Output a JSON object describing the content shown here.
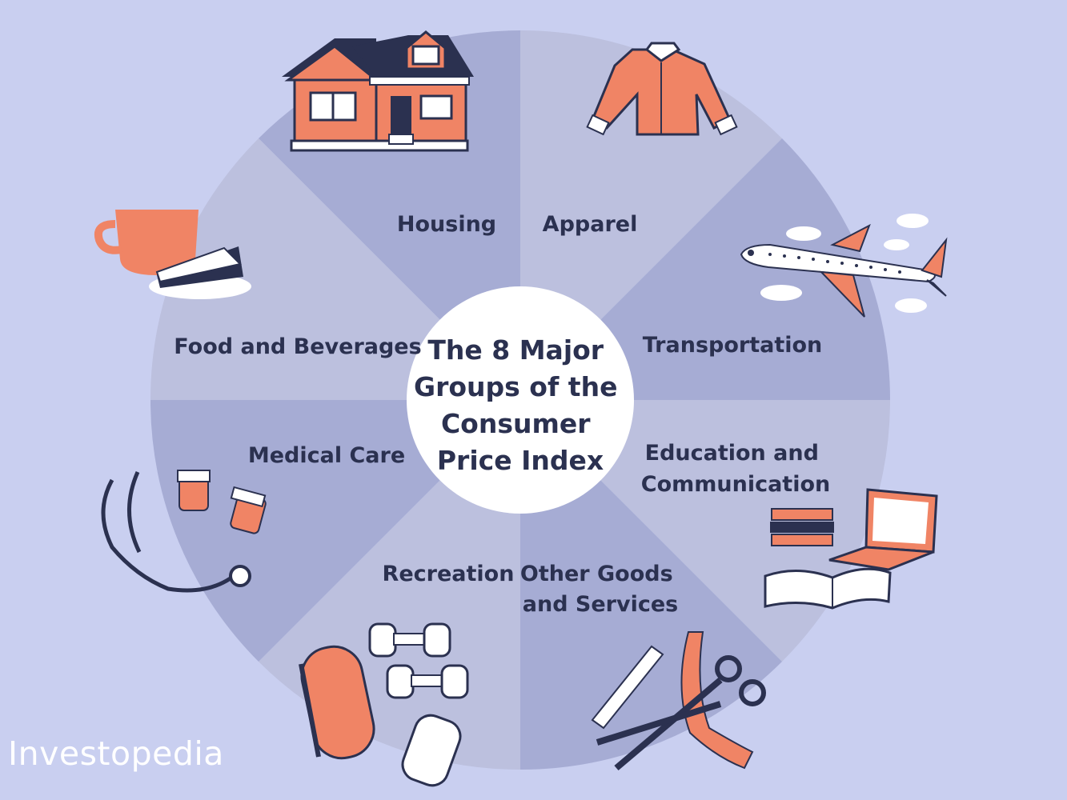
{
  "center": {
    "title_lines": [
      "The 8 Major",
      "Groups of the",
      "Consumer",
      "Price Index"
    ]
  },
  "segments": [
    {
      "name": "housing",
      "lines": [
        "Housing"
      ],
      "icon": "house-icon"
    },
    {
      "name": "apparel",
      "lines": [
        "Apparel"
      ],
      "icon": "shirt-icon"
    },
    {
      "name": "transportation",
      "lines": [
        "Transportation"
      ],
      "icon": "airplane-icon"
    },
    {
      "name": "education-and-communication",
      "lines": [
        "Education and",
        "Communication"
      ],
      "icon": "laptop-books-icon"
    },
    {
      "name": "other-goods-and-services",
      "lines": [
        "Other Goods",
        "and Services"
      ],
      "icon": "scissors-comb-icon"
    },
    {
      "name": "recreation",
      "lines": [
        "Recreation"
      ],
      "icon": "dumbbells-icon"
    },
    {
      "name": "medical-care",
      "lines": [
        "Medical Care"
      ],
      "icon": "stethoscope-icon"
    },
    {
      "name": "food-and-beverages",
      "lines": [
        "Food and Beverages"
      ],
      "icon": "coffee-cake-icon"
    }
  ],
  "brand": {
    "text": "Investopedia"
  },
  "colors": {
    "background": "#c9cff0",
    "segment_dark": "#a6acd4",
    "segment_light": "#bcc0de",
    "center_circle": "#ffffff",
    "text": "#2b3150",
    "accent": "#f08465",
    "navy": "#2b3150"
  }
}
